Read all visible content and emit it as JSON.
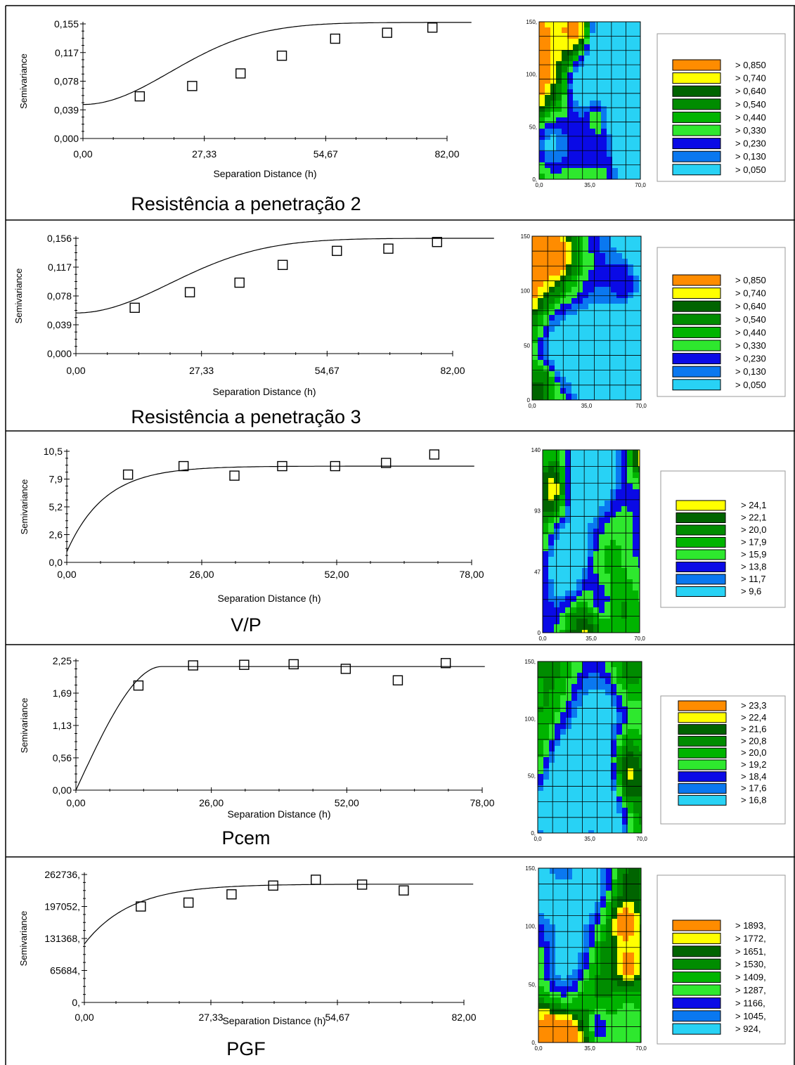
{
  "colors": {
    "orange": "#FF8C00",
    "yellow": "#FFFF00",
    "dark_green": "#006400",
    "green": "#008C00",
    "mid_green": "#00B400",
    "light_green": "#2EE82E",
    "blue": "#0A0AE6",
    "mid_blue": "#0A78F0",
    "light_blue": "#28D2F5"
  },
  "rows": [
    {
      "caption": "Resistência a penetração 2",
      "chart_data": {
        "type": "scatter",
        "xlabel": "Separation Distance (h)",
        "ylabel": "Semivariance",
        "x_ticks": [
          "0,00",
          "27,33",
          "54,67",
          "82,00"
        ],
        "y_ticks": [
          "0,000",
          "0,039",
          "0,078",
          "0,117",
          "0,155"
        ],
        "xlim": [
          0,
          82
        ],
        "ylim": [
          0,
          0.155
        ],
        "points": [
          [
            12.8,
            0.057
          ],
          [
            24.6,
            0.071
          ],
          [
            35.5,
            0.088
          ],
          [
            44.8,
            0.112
          ],
          [
            56.8,
            0.135
          ],
          [
            68.5,
            0.143
          ],
          [
            78.7,
            0.15
          ]
        ],
        "model": {
          "kind": "gaussian",
          "nugget": 0.046,
          "sill": 0.157,
          "range": 48
        },
        "curve_end": 87.5,
        "map": {
          "x_ticks": [
            "0,0",
            "35,0",
            "70,0"
          ],
          "y_ticks": [
            "0,",
            "50,",
            "100,",
            "150,"
          ],
          "legend": [
            {
              "label": "> 0,850",
              "color": "orange"
            },
            {
              "label": "> 0,740",
              "color": "yellow"
            },
            {
              "label": "> 0,640",
              "color": "dark_green"
            },
            {
              "label": "> 0,540",
              "color": "green"
            },
            {
              "label": "> 0,440",
              "color": "mid_green"
            },
            {
              "label": "> 0,330",
              "color": "light_green"
            },
            {
              "label": "> 0,230",
              "color": "blue"
            },
            {
              "label": "> 0,130",
              "color": "mid_blue"
            },
            {
              "label": "> 0,050",
              "color": "light_blue"
            }
          ]
        }
      }
    },
    {
      "caption": "Resistência a penetração 3",
      "chart_data": {
        "type": "scatter",
        "xlabel": "Separation Distance (h)",
        "ylabel": "Semivariance",
        "x_ticks": [
          "0,00",
          "27,33",
          "54,67",
          "82,00"
        ],
        "y_ticks": [
          "0,000",
          "0,039",
          "0,078",
          "0,117",
          "0,156"
        ],
        "xlim": [
          0,
          82
        ],
        "ylim": [
          0,
          0.156
        ],
        "points": [
          [
            12.8,
            0.062
          ],
          [
            24.8,
            0.083
          ],
          [
            35.6,
            0.096
          ],
          [
            45.0,
            0.12
          ],
          [
            56.8,
            0.139
          ],
          [
            68.0,
            0.142
          ],
          [
            78.6,
            0.151
          ]
        ],
        "model": {
          "kind": "gaussian",
          "nugget": 0.055,
          "sill": 0.156,
          "range": 50
        },
        "curve_end": 91,
        "map": {
          "x_ticks": [
            "0,0",
            "35,0",
            "70,0"
          ],
          "y_ticks": [
            "0",
            "50",
            "100",
            "150"
          ],
          "legend": [
            {
              "label": "> 0,850",
              "color": "orange"
            },
            {
              "label": "> 0,740",
              "color": "yellow"
            },
            {
              "label": "> 0,640",
              "color": "dark_green"
            },
            {
              "label": "> 0,540",
              "color": "green"
            },
            {
              "label": "> 0,440",
              "color": "mid_green"
            },
            {
              "label": "> 0,330",
              "color": "light_green"
            },
            {
              "label": "> 0,230",
              "color": "blue"
            },
            {
              "label": "> 0,130",
              "color": "mid_blue"
            },
            {
              "label": "> 0,050",
              "color": "light_blue"
            }
          ]
        }
      }
    },
    {
      "caption": "V/P",
      "chart_data": {
        "type": "scatter",
        "xlabel": "Separation Distance (h)",
        "ylabel": "Semivariance",
        "x_ticks": [
          "0,00",
          "26,00",
          "52,00",
          "78,00"
        ],
        "y_ticks": [
          "0,0",
          "2,6",
          "5,2",
          "7,9",
          "10,5"
        ],
        "xlim": [
          0,
          78
        ],
        "ylim": [
          0,
          10.5
        ],
        "points": [
          [
            11.8,
            8.3
          ],
          [
            22.5,
            9.1
          ],
          [
            32.3,
            8.2
          ],
          [
            41.5,
            9.1
          ],
          [
            51.7,
            9.1
          ],
          [
            61.5,
            9.4
          ],
          [
            70.8,
            10.2
          ]
        ],
        "model": {
          "kind": "exponential",
          "nugget": 1.0,
          "sill": 9.1,
          "range": 22
        },
        "curve_end": 78.5,
        "map": {
          "x_ticks": [
            "0,0",
            "35,0",
            "70,0"
          ],
          "y_ticks": [
            "0",
            "47",
            "93",
            "140"
          ],
          "legend": [
            {
              "label": "> 24,1",
              "color": "yellow"
            },
            {
              "label": "> 22,1",
              "color": "dark_green"
            },
            {
              "label": "> 20,0",
              "color": "green"
            },
            {
              "label": "> 17,9",
              "color": "mid_green"
            },
            {
              "label": "> 15,9",
              "color": "light_green"
            },
            {
              "label": "> 13,8",
              "color": "blue"
            },
            {
              "label": "> 11,7",
              "color": "mid_blue"
            },
            {
              "label": "> 9,6",
              "color": "light_blue"
            }
          ]
        }
      }
    },
    {
      "caption": "Pcem",
      "chart_data": {
        "type": "scatter",
        "xlabel": "Separation Distance (h)",
        "ylabel": "Semivariance",
        "x_ticks": [
          "0,00",
          "26,00",
          "52,00",
          "78,00"
        ],
        "y_ticks": [
          "0,00",
          "0,56",
          "1,13",
          "1,69",
          "2,25"
        ],
        "xlim": [
          0,
          78
        ],
        "ylim": [
          0,
          2.25
        ],
        "points": [
          [
            12.0,
            1.82
          ],
          [
            22.5,
            2.17
          ],
          [
            32.3,
            2.18
          ],
          [
            41.8,
            2.19
          ],
          [
            51.8,
            2.11
          ],
          [
            61.8,
            1.91
          ],
          [
            71.0,
            2.21
          ]
        ],
        "model": {
          "kind": "spherical",
          "nugget": 0.0,
          "sill": 2.15,
          "range": 16.5
        },
        "curve_end": 78.5,
        "map": {
          "x_ticks": [
            "0,0",
            "35,0",
            "70,0"
          ],
          "y_ticks": [
            "0,",
            "50,",
            "100,",
            "150,"
          ],
          "legend": [
            {
              "label": "> 23,3",
              "color": "orange"
            },
            {
              "label": "> 22,4",
              "color": "yellow"
            },
            {
              "label": "> 21,6",
              "color": "dark_green"
            },
            {
              "label": "> 20,8",
              "color": "green"
            },
            {
              "label": "> 20,0",
              "color": "mid_green"
            },
            {
              "label": "> 19,2",
              "color": "light_green"
            },
            {
              "label": "> 18,4",
              "color": "blue"
            },
            {
              "label": "> 17,6",
              "color": "mid_blue"
            },
            {
              "label": "> 16,8",
              "color": "light_blue"
            }
          ]
        }
      }
    },
    {
      "caption": "PGF",
      "chart_data": {
        "type": "scatter",
        "xlabel": "Separation Distance (h)",
        "ylabel": "Semivariance",
        "x_ticks": [
          "0,00",
          "27,33",
          "54,67",
          "82,00"
        ],
        "y_ticks": [
          "0,",
          "65684,",
          "131368,",
          "197052,",
          "262736,"
        ],
        "xlim": [
          0,
          82
        ],
        "ylim": [
          0,
          262736
        ],
        "points": [
          [
            12.2,
            197052
          ],
          [
            22.5,
            205000
          ],
          [
            31.8,
            222000
          ],
          [
            40.8,
            240000
          ],
          [
            50.0,
            252000
          ],
          [
            60.0,
            242000
          ],
          [
            69.0,
            230000
          ]
        ],
        "model": {
          "kind": "exponential",
          "nugget": 120000,
          "sill": 243000,
          "range": 30
        },
        "curve_end": 84,
        "map": {
          "x_ticks": [
            "0,0",
            "35,0",
            "70,0"
          ],
          "y_ticks": [
            "0,",
            "50,",
            "100,",
            "150,"
          ],
          "legend": [
            {
              "label": "> 1893,",
              "color": "orange"
            },
            {
              "label": "> 1772,",
              "color": "yellow"
            },
            {
              "label": "> 1651,",
              "color": "dark_green"
            },
            {
              "label": "> 1530,",
              "color": "green"
            },
            {
              "label": "> 1409,",
              "color": "mid_green"
            },
            {
              "label": "> 1287,",
              "color": "light_green"
            },
            {
              "label": "> 1166,",
              "color": "blue"
            },
            {
              "label": "> 1045,",
              "color": "mid_blue"
            },
            {
              "label": "> 924,",
              "color": "light_blue"
            }
          ]
        }
      }
    }
  ]
}
